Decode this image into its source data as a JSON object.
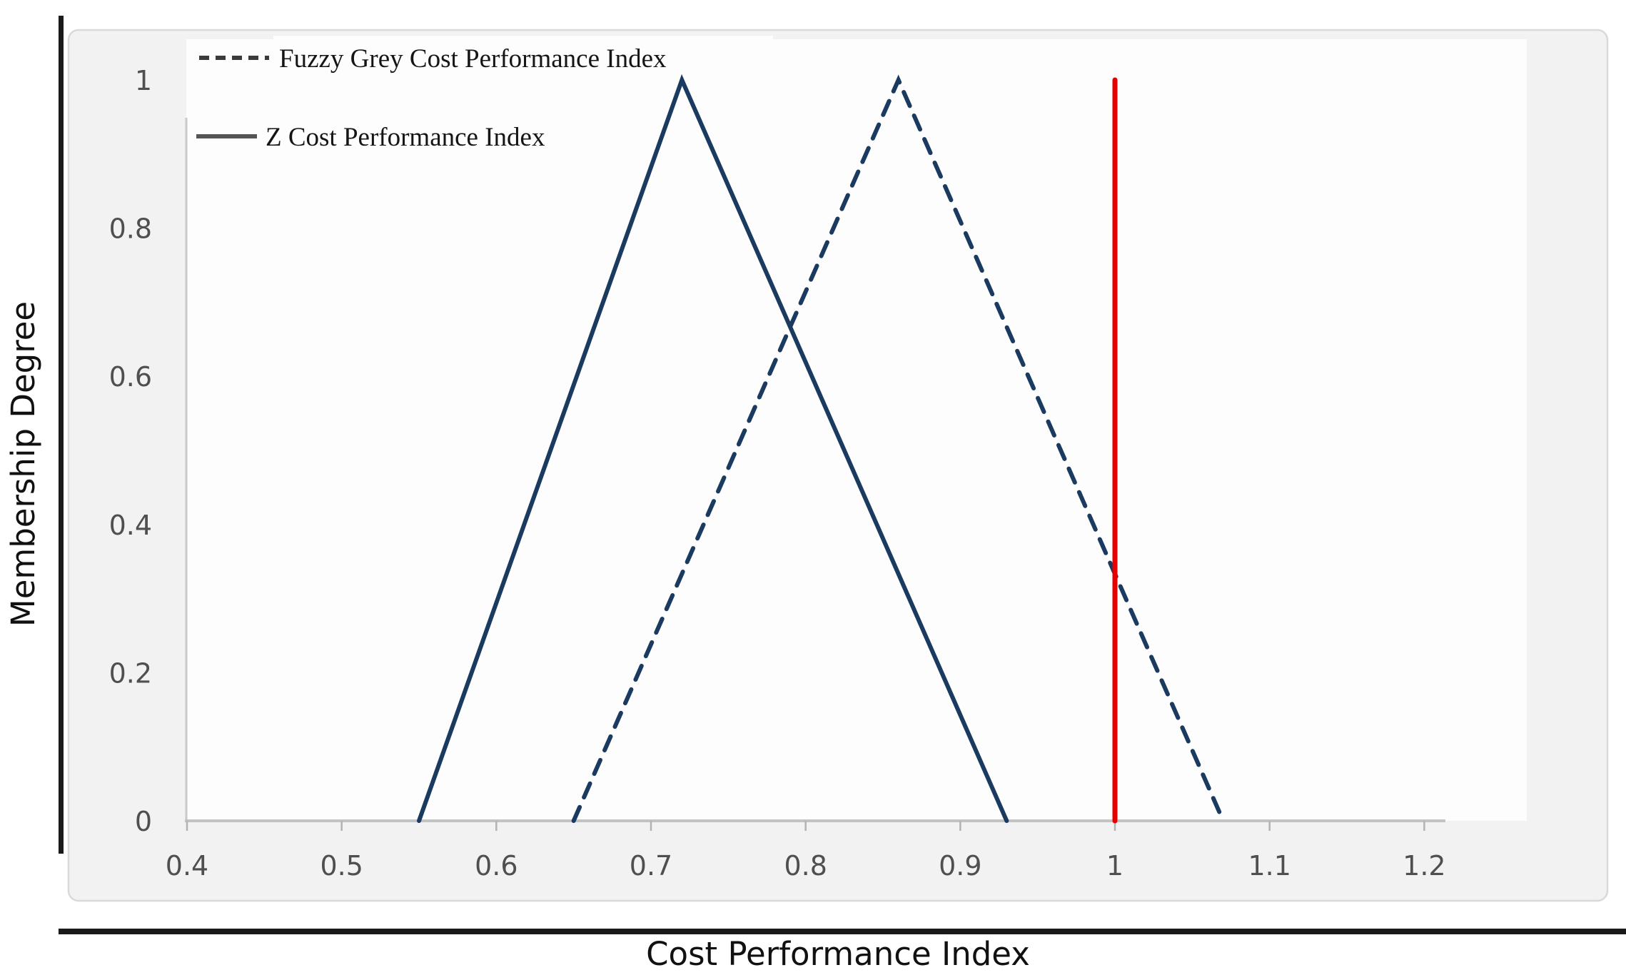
{
  "figure": {
    "description": "Fuzzy membership functions of cost performance index",
    "background_color": "#ffffff",
    "panel_background_color": "#f2f2f2",
    "panel_border_color": "#d9d9d9",
    "plot_background_color": "#fdfdfd",
    "outer_frame_color": "#1a1a1a",
    "axis_line_color": "#c5c5c5",
    "tick_label_color": "#4f4f4f"
  },
  "legend": {
    "position": "top-left",
    "items": [
      {
        "label": "Fuzzy Grey Cost Performance Index",
        "swatch": "dashed-line",
        "swatch_color": "#3a3a3a"
      },
      {
        "label": "Z Cost Performance Index",
        "swatch": "solid-line",
        "swatch_color": "#555555"
      }
    ]
  },
  "chart_data": {
    "type": "line",
    "title": "",
    "xlabel": "Cost Performance Index",
    "ylabel": "Membership Degree",
    "xlim": [
      0.4,
      1.213
    ],
    "ylim": [
      0,
      1
    ],
    "x_ticks": [
      0.4,
      0.5,
      0.6,
      0.7,
      0.8,
      0.9,
      1,
      1.1,
      1.2
    ],
    "x_tick_labels": [
      "0.4",
      "0.5",
      "0.6",
      "0.7",
      "0.8",
      "0.9",
      "1",
      "1.1",
      "1.2"
    ],
    "y_ticks": [
      0,
      0.2,
      0.4,
      0.6,
      0.8,
      1
    ],
    "y_tick_labels": [
      "0",
      "0.2",
      "0.4",
      "0.6",
      "0.8",
      "1"
    ],
    "grid": false,
    "legend_position": "top-left",
    "series": [
      {
        "name": "Z Cost Performance Index",
        "style": "solid",
        "color": "#1b3a60",
        "width": 6,
        "points": [
          [
            0.55,
            0
          ],
          [
            0.72,
            1
          ],
          [
            0.93,
            0
          ]
        ]
      },
      {
        "name": "Fuzzy Grey Cost Performance Index",
        "style": "dashed",
        "color": "#1b3a60",
        "width": 6,
        "points": [
          [
            0.65,
            0
          ],
          [
            0.86,
            1
          ],
          [
            1.07,
            0
          ]
        ]
      },
      {
        "name": "CPI reference line at 1",
        "style": "solid",
        "color": "#e60000",
        "width": 7,
        "points": [
          [
            1.0,
            0
          ],
          [
            1.0,
            1
          ]
        ]
      }
    ]
  }
}
